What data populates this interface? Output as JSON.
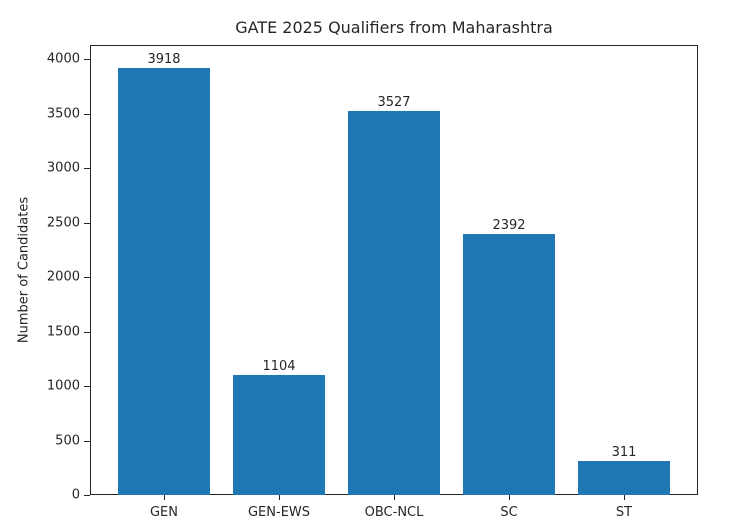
{
  "chart_data": {
    "type": "bar",
    "title": "GATE 2025 Qualifiers from Maharashtra",
    "xlabel": "",
    "ylabel": "Number of Candidates",
    "categories": [
      "GEN",
      "GEN-EWS",
      "OBC-NCL",
      "SC",
      "ST"
    ],
    "values": [
      3918,
      1104,
      3527,
      2392,
      311
    ],
    "data_labels": [
      "3918",
      "1104",
      "3527",
      "2392",
      "311"
    ],
    "ylim": [
      0,
      4114
    ],
    "yticks": [
      0,
      500,
      1000,
      1500,
      2000,
      2500,
      3000,
      3500,
      4000
    ],
    "ytick_labels": [
      "0",
      "500",
      "1000",
      "1500",
      "2000",
      "2500",
      "3000",
      "3500",
      "4000"
    ],
    "grid": false,
    "legend": null,
    "bar_color": "#1f77b4"
  }
}
